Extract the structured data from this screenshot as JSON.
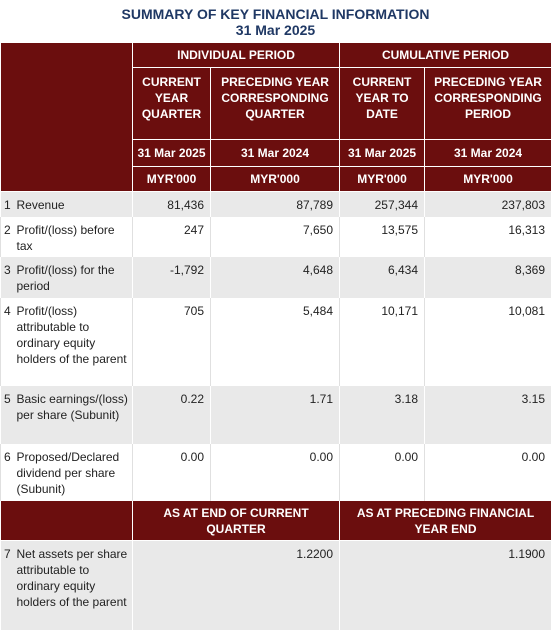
{
  "header": {
    "title": "SUMMARY OF KEY FINANCIAL INFORMATION",
    "date": "31 Mar 2025"
  },
  "table": {
    "period_headers": [
      "INDIVIDUAL PERIOD",
      "CUMULATIVE PERIOD"
    ],
    "column_headers": [
      "CURRENT YEAR QUARTER",
      "PRECEDING YEAR CORRESPONDING QUARTER",
      "CURRENT YEAR TO DATE",
      "PRECEDING YEAR CORRESPONDING PERIOD"
    ],
    "dates": [
      "31 Mar 2025",
      "31 Mar 2024",
      "31 Mar 2025",
      "31 Mar 2024"
    ],
    "units": [
      "MYR'000",
      "MYR'000",
      "MYR'000",
      "MYR'000"
    ],
    "rows": [
      {
        "no": "1",
        "label": "Revenue",
        "values": [
          "81,436",
          "87,789",
          "257,344",
          "237,803"
        ]
      },
      {
        "no": "2",
        "label": "Profit/(loss) before tax",
        "values": [
          "247",
          "7,650",
          "13,575",
          "16,313"
        ]
      },
      {
        "no": "3",
        "label": "Profit/(loss) for the period",
        "values": [
          "-1,792",
          "4,648",
          "6,434",
          "8,369"
        ]
      },
      {
        "no": "4",
        "label": "Profit/(loss) attributable to ordinary equity holders of the parent",
        "values": [
          "705",
          "5,484",
          "10,171",
          "10,081"
        ]
      },
      {
        "no": "5",
        "label": "Basic earnings/(loss) per share (Subunit)",
        "values": [
          "0.22",
          "1.71",
          "3.18",
          "3.15"
        ]
      },
      {
        "no": "6",
        "label": "Proposed/Declared dividend per share (Subunit)",
        "values": [
          "0.00",
          "0.00",
          "0.00",
          "0.00"
        ]
      }
    ],
    "asset_headers": [
      "AS AT END OF CURRENT QUARTER",
      "AS AT PRECEDING FINANCIAL YEAR END"
    ],
    "asset_row": {
      "no": "7",
      "label": "Net assets per share attributable to ordinary equity holders of the parent",
      "values": [
        "1.2200",
        "1.1900"
      ]
    }
  }
}
